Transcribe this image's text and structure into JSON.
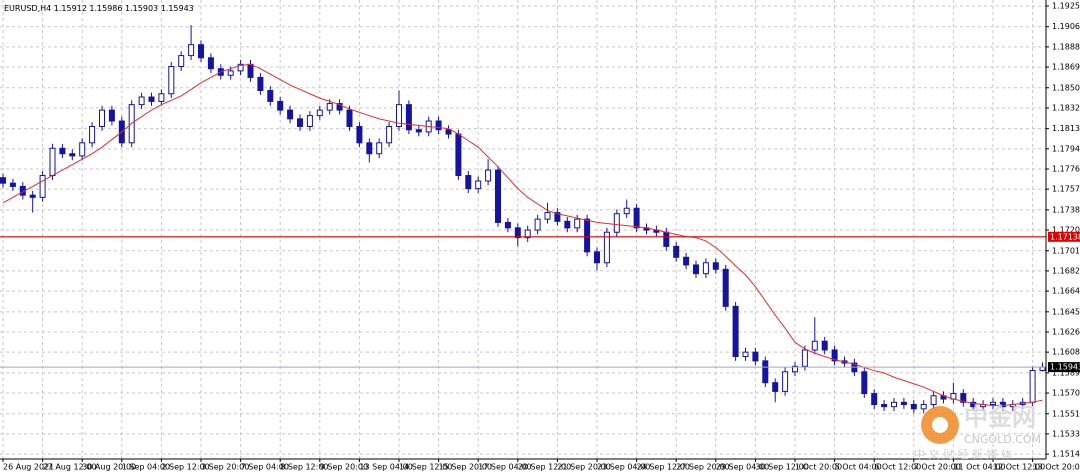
{
  "chart_data": {
    "type": "candlestick",
    "symbol": "EURUSD,H4",
    "categories": [
      "26 Aug 2021",
      null,
      null,
      null,
      "27 Aug 12:00",
      null,
      null,
      null,
      "30 Aug 20:00",
      null,
      null,
      null,
      "1 Sep 04:00",
      null,
      null,
      null,
      "2 Sep 12:00",
      null,
      null,
      null,
      "3 Sep 20:00",
      null,
      null,
      null,
      "7 Sep 04:00",
      null,
      null,
      null,
      "8 Sep 12:00",
      null,
      null,
      null,
      "9 Sep 20:00",
      null,
      null,
      null,
      "13 Sep 04:00",
      null,
      null,
      null,
      "14 Sep 12:00",
      null,
      null,
      null,
      "15 Sep 20:00",
      null,
      null,
      null,
      "17 Sep 04:00",
      null,
      null,
      null,
      "20 Sep 12:00",
      null,
      null,
      null,
      "21 Sep 20:00",
      null,
      null,
      null,
      "23 Sep 04:00",
      null,
      null,
      null,
      "24 Sep 12:00",
      null,
      null,
      null,
      "27 Sep 20:00",
      null,
      null,
      null,
      "29 Sep 04:00",
      null,
      null,
      null,
      "30 Sep 12:00",
      null,
      null,
      null,
      "1 Oct 20:00",
      null,
      null,
      null,
      "5 Oct 04:00",
      null,
      null,
      null,
      "6 Oct 12:00",
      null,
      null,
      null,
      "7 Oct 20:00",
      null,
      null,
      null,
      "11 Oct 04:00",
      null,
      null,
      null,
      "12 Oct 12:00",
      null,
      null,
      null,
      "13 Oct 20:00",
      null
    ],
    "open": [
      1.1768,
      1.1763,
      1.176,
      1.1752,
      1.175,
      1.177,
      1.1795,
      1.179,
      1.1788,
      1.18,
      1.1815,
      1.183,
      1.182,
      1.18,
      1.1835,
      1.1842,
      1.1838,
      1.1845,
      1.187,
      1.188,
      1.189,
      1.1878,
      1.1868,
      1.1862,
      1.1866,
      1.1872,
      1.186,
      1.1848,
      1.1838,
      1.183,
      1.1822,
      1.1815,
      1.1825,
      1.183,
      1.1836,
      1.183,
      1.1815,
      1.18,
      1.179,
      1.18,
      1.1815,
      1.1835,
      1.1812,
      1.181,
      1.182,
      1.1812,
      1.1808,
      1.177,
      1.1758,
      1.1765,
      1.1775,
      1.1727,
      1.1722,
      1.1713,
      1.172,
      1.173,
      1.1736,
      1.1728,
      1.1722,
      1.173,
      1.17,
      1.169,
      1.1718,
      1.1735,
      1.174,
      1.1722,
      1.172,
      1.1718,
      1.1705,
      1.1695,
      1.1688,
      1.168,
      1.169,
      1.1684,
      1.165,
      1.1604,
      1.1608,
      1.16,
      1.158,
      1.1572,
      1.159,
      1.1595,
      1.161,
      1.1618,
      1.161,
      1.16,
      1.1598,
      1.159,
      1.157,
      1.156,
      1.1558,
      1.1562,
      1.156,
      1.1556,
      1.156,
      1.1568,
      1.1565,
      1.157,
      1.1562,
      1.1558,
      1.156,
      1.1562,
      1.1558,
      1.156,
      1.1562,
      1.15912
    ],
    "high": [
      1.1772,
      1.1767,
      1.1764,
      1.1756,
      1.1774,
      1.1799,
      1.1799,
      1.1794,
      1.1804,
      1.1819,
      1.1834,
      1.1834,
      1.1824,
      1.1839,
      1.1846,
      1.1846,
      1.1849,
      1.1874,
      1.1884,
      1.1908,
      1.1894,
      1.1882,
      1.1872,
      1.187,
      1.1876,
      1.1876,
      1.1864,
      1.1852,
      1.1842,
      1.1834,
      1.1826,
      1.1829,
      1.1834,
      1.184,
      1.184,
      1.1834,
      1.1819,
      1.1804,
      1.1804,
      1.1819,
      1.1848,
      1.1839,
      1.1816,
      1.1824,
      1.1824,
      1.1816,
      1.1812,
      1.1774,
      1.1769,
      1.1785,
      1.1779,
      1.1731,
      1.1726,
      1.1724,
      1.1734,
      1.1745,
      1.174,
      1.1732,
      1.1734,
      1.1734,
      1.1704,
      1.1722,
      1.1739,
      1.1748,
      1.1744,
      1.1726,
      1.1724,
      1.1722,
      1.1709,
      1.1699,
      1.1692,
      1.1694,
      1.1694,
      1.1688,
      1.1654,
      1.1612,
      1.1612,
      1.1604,
      1.1584,
      1.1594,
      1.1599,
      1.1614,
      1.164,
      1.1622,
      1.1614,
      1.1604,
      1.1602,
      1.1594,
      1.1574,
      1.1564,
      1.1566,
      1.1566,
      1.1564,
      1.1564,
      1.1572,
      1.1572,
      1.158,
      1.1574,
      1.1566,
      1.1564,
      1.1566,
      1.1566,
      1.1564,
      1.1566,
      1.15952,
      1.15986
    ],
    "low": [
      1.1759,
      1.1756,
      1.1748,
      1.1736,
      1.1746,
      1.1766,
      1.1786,
      1.1784,
      1.1784,
      1.1796,
      1.1811,
      1.1816,
      1.1796,
      1.1796,
      1.1831,
      1.1834,
      1.1834,
      1.1841,
      1.1866,
      1.1876,
      1.1874,
      1.1864,
      1.1858,
      1.1858,
      1.1862,
      1.1856,
      1.1844,
      1.1834,
      1.1826,
      1.1818,
      1.1811,
      1.1811,
      1.1821,
      1.1826,
      1.1826,
      1.1811,
      1.1796,
      1.1782,
      1.1786,
      1.1796,
      1.1811,
      1.1808,
      1.1806,
      1.1806,
      1.1808,
      1.1804,
      1.1766,
      1.1754,
      1.1754,
      1.1761,
      1.1723,
      1.1718,
      1.1705,
      1.1709,
      1.1716,
      1.1726,
      1.1724,
      1.1718,
      1.1718,
      1.1696,
      1.1683,
      1.1686,
      1.1714,
      1.1731,
      1.1718,
      1.1716,
      1.1714,
      1.1701,
      1.1691,
      1.1684,
      1.1676,
      1.1676,
      1.168,
      1.1646,
      1.16,
      1.16,
      1.1596,
      1.1576,
      1.1562,
      1.1568,
      1.1586,
      1.1591,
      1.1606,
      1.1606,
      1.1596,
      1.1594,
      1.1586,
      1.1566,
      1.1556,
      1.1554,
      1.1554,
      1.1556,
      1.1552,
      1.1552,
      1.1556,
      1.1561,
      1.1561,
      1.1558,
      1.1554,
      1.1554,
      1.1556,
      1.1554,
      1.1554,
      1.1556,
      1.1558,
      1.15903
    ],
    "close": [
      1.1763,
      1.176,
      1.1752,
      1.175,
      1.177,
      1.1795,
      1.179,
      1.1788,
      1.18,
      1.1815,
      1.183,
      1.182,
      1.18,
      1.1835,
      1.1842,
      1.1838,
      1.1845,
      1.187,
      1.188,
      1.189,
      1.1878,
      1.1868,
      1.1862,
      1.1866,
      1.1872,
      1.186,
      1.1848,
      1.1838,
      1.183,
      1.1822,
      1.1815,
      1.1825,
      1.183,
      1.1836,
      1.183,
      1.1815,
      1.18,
      1.179,
      1.18,
      1.1815,
      1.1835,
      1.1812,
      1.181,
      1.182,
      1.1812,
      1.1808,
      1.177,
      1.1758,
      1.1765,
      1.1775,
      1.1727,
      1.1722,
      1.1713,
      1.172,
      1.173,
      1.1736,
      1.1728,
      1.1722,
      1.173,
      1.17,
      1.169,
      1.1718,
      1.1735,
      1.174,
      1.1722,
      1.172,
      1.1718,
      1.1705,
      1.1695,
      1.1688,
      1.168,
      1.169,
      1.1684,
      1.165,
      1.1604,
      1.1608,
      1.16,
      1.158,
      1.1572,
      1.159,
      1.1595,
      1.161,
      1.1618,
      1.161,
      1.16,
      1.1598,
      1.159,
      1.157,
      1.156,
      1.1558,
      1.1562,
      1.156,
      1.1556,
      1.156,
      1.1568,
      1.1565,
      1.157,
      1.1562,
      1.1558,
      1.156,
      1.1562,
      1.1558,
      1.156,
      1.1562,
      1.15912,
      1.15943
    ],
    "candle_color": "#1414a0",
    "ma": {
      "color": "#e03030",
      "values": [
        1.1745,
        1.175,
        1.1755,
        1.176,
        1.1765,
        1.177,
        1.1775,
        1.178,
        1.1785,
        1.179,
        1.1796,
        1.1803,
        1.181,
        1.1818,
        1.1824,
        1.183,
        1.1835,
        1.1839,
        1.1843,
        1.1849,
        1.1855,
        1.186,
        1.1865,
        1.1868,
        1.1871,
        1.1872,
        1.1868,
        1.1863,
        1.1858,
        1.1853,
        1.1849,
        1.1845,
        1.1841,
        1.1838,
        1.1835,
        1.1831,
        1.1828,
        1.1825,
        1.1822,
        1.182,
        1.1818,
        1.1817,
        1.1816,
        1.1815,
        1.1814,
        1.1813,
        1.1808,
        1.1802,
        1.1796,
        1.1787,
        1.1778,
        1.1768,
        1.1758,
        1.175,
        1.1744,
        1.1738,
        1.1735,
        1.1733,
        1.1731,
        1.1729,
        1.1727,
        1.1726,
        1.1725,
        1.1724,
        1.1723,
        1.1722,
        1.172,
        1.1718,
        1.1716,
        1.1714,
        1.1713,
        1.171,
        1.1704,
        1.1696,
        1.1687,
        1.1679,
        1.1668,
        1.1655,
        1.1642,
        1.163,
        1.1617,
        1.1611,
        1.1607,
        1.1604,
        1.1601,
        1.1599,
        1.1597,
        1.1594,
        1.1591,
        1.1589,
        1.1585,
        1.1582,
        1.1579,
        1.1576,
        1.1572,
        1.1568,
        1.1565,
        1.1563,
        1.1561,
        1.156,
        1.1559,
        1.1559,
        1.156,
        1.1561,
        1.1562,
        1.1564
      ]
    },
    "hline": {
      "value": 1.17138,
      "color": "#e00000"
    },
    "ylim": [
      1.151,
      1.1931
    ],
    "yticks": [
      1.19255,
      1.19065,
      {
        "value": 1.1888,
        "label": "1.18880"
      },
      1.18695,
      1.18505,
      {
        "value": 1.1832,
        "label": "1.18320"
      },
      {
        "value": 1.1813,
        "label": "1.18130"
      },
      1.17945,
      {
        "value": 1.1776,
        "label": "1.17760"
      },
      1.17575,
      1.17385,
      {
        "value": 1.172,
        "label": "1.17200"
      },
      {
        "value": 1.1701,
        "label": "1.17010"
      },
      1.16825,
      {
        "value": 1.1664,
        "label": "1.16640"
      },
      {
        "value": 1.1645,
        "label": "1.16450"
      },
      1.16265,
      {
        "value": 1.1608,
        "label": "1.16080"
      },
      {
        "value": 1.1589,
        "label": "1.15890"
      },
      1.15705,
      1.15515,
      {
        "value": 1.1533,
        "label": "1.15330"
      },
      1.15145
    ],
    "grid": true
  },
  "watermark": {
    "brand": "中金网",
    "site": "CNGOLD.COM",
    "slogan": "中 文 财 经 新 媒 体"
  }
}
